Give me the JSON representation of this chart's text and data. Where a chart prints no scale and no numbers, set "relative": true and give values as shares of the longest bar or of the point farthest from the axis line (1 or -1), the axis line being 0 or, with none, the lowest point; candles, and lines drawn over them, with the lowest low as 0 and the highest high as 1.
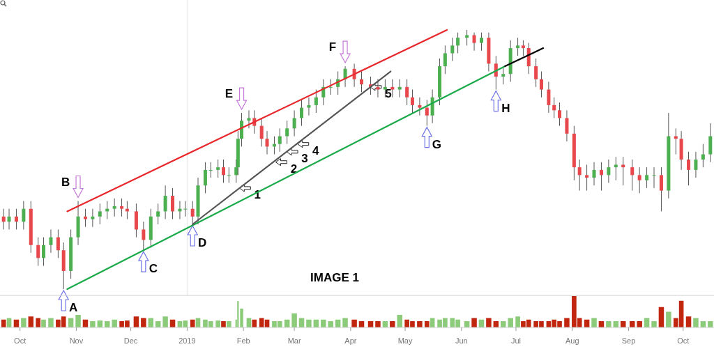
{
  "chart_data": [
    {
      "type": "candlestick",
      "relative": true,
      "tick_labels": false,
      "xlim": [
        "2018-09-20",
        "2019-10-18"
      ],
      "x": [
        "2018-09-22",
        "2018-09-25",
        "2018-09-29",
        "2018-10-03",
        "2018-10-07",
        "2018-10-11",
        "2018-10-14",
        "2018-10-18",
        "2018-10-22",
        "2018-10-25",
        "2018-10-29",
        "2018-11-02",
        "2018-11-06",
        "2018-11-10",
        "2018-11-14",
        "2018-11-18",
        "2018-11-22",
        "2018-11-26",
        "2018-11-29",
        "2018-12-04",
        "2018-12-08",
        "2018-12-12",
        "2018-12-16",
        "2018-12-20",
        "2018-12-24",
        "2018-12-28",
        "2018-12-31",
        "2019-01-04",
        "2019-01-07",
        "2019-01-11",
        "2019-01-14",
        "2019-01-18",
        "2019-01-21",
        "2019-01-24",
        "2019-01-28",
        "2019-01-29",
        "2019-01-31",
        "2019-02-04",
        "2019-02-07",
        "2019-02-11",
        "2019-02-14",
        "2019-02-18",
        "2019-02-21",
        "2019-02-25",
        "2019-03-01",
        "2019-03-05",
        "2019-03-09",
        "2019-03-13",
        "2019-03-17",
        "2019-03-21",
        "2019-03-25",
        "2019-03-29",
        "2019-04-03",
        "2019-04-07",
        "2019-04-12",
        "2019-04-16",
        "2019-04-20",
        "2019-04-24",
        "2019-04-28",
        "2019-05-02",
        "2019-05-05",
        "2019-05-09",
        "2019-05-13",
        "2019-05-16",
        "2019-05-20",
        "2019-05-23",
        "2019-05-27",
        "2019-05-30",
        "2019-06-04",
        "2019-06-08",
        "2019-06-12",
        "2019-06-16",
        "2019-06-20",
        "2019-06-24",
        "2019-06-28",
        "2019-07-02",
        "2019-07-05",
        "2019-07-08",
        "2019-07-12",
        "2019-07-15",
        "2019-07-19",
        "2019-07-22",
        "2019-07-25",
        "2019-07-29",
        "2019-08-02",
        "2019-08-05",
        "2019-08-09",
        "2019-08-13",
        "2019-08-17",
        "2019-08-21",
        "2019-08-25",
        "2019-08-29",
        "2019-09-03",
        "2019-09-07",
        "2019-09-11",
        "2019-09-15",
        "2019-09-19",
        "2019-09-23",
        "2019-09-27",
        "2019-09-30",
        "2019-10-04",
        "2019-10-08",
        "2019-10-12",
        "2019-10-16"
      ],
      "ohlc": [
        [
          0.28,
          0.31,
          0.23,
          0.26
        ],
        [
          0.26,
          0.31,
          0.23,
          0.28
        ],
        [
          0.28,
          0.31,
          0.23,
          0.26
        ],
        [
          0.26,
          0.34,
          0.23,
          0.31
        ],
        [
          0.31,
          0.34,
          0.14,
          0.17
        ],
        [
          0.17,
          0.2,
          0.09,
          0.12
        ],
        [
          0.12,
          0.2,
          0.09,
          0.17
        ],
        [
          0.17,
          0.23,
          0.14,
          0.2
        ],
        [
          0.2,
          0.23,
          0.12,
          0.15
        ],
        [
          0.15,
          0.18,
          0,
          0.07
        ],
        [
          0.07,
          0.23,
          0.04,
          0.2
        ],
        [
          0.2,
          0.34,
          0.17,
          0.28
        ],
        [
          0.28,
          0.31,
          0.24,
          0.27
        ],
        [
          0.27,
          0.31,
          0.24,
          0.28
        ],
        [
          0.28,
          0.33,
          0.25,
          0.3
        ],
        [
          0.3,
          0.34,
          0.27,
          0.31
        ],
        [
          0.31,
          0.35,
          0.28,
          0.32
        ],
        [
          0.32,
          0.35,
          0.28,
          0.31
        ],
        [
          0.31,
          0.34,
          0.27,
          0.3
        ],
        [
          0.3,
          0.33,
          0.2,
          0.23
        ],
        [
          0.23,
          0.26,
          0.15,
          0.19
        ],
        [
          0.19,
          0.31,
          0.16,
          0.28
        ],
        [
          0.28,
          0.33,
          0.25,
          0.3
        ],
        [
          0.3,
          0.4,
          0.27,
          0.36
        ],
        [
          0.36,
          0.39,
          0.27,
          0.3
        ],
        [
          0.3,
          0.34,
          0.27,
          0.31
        ],
        [
          0.31,
          0.34,
          0.28,
          0.31
        ],
        [
          0.31,
          0.34,
          0.25,
          0.28
        ],
        [
          0.28,
          0.43,
          0.25,
          0.4
        ],
        [
          0.4,
          0.49,
          0.37,
          0.46
        ],
        [
          0.46,
          0.49,
          0.43,
          0.46
        ],
        [
          0.46,
          0.5,
          0.43,
          0.47
        ],
        [
          0.47,
          0.5,
          0.41,
          0.44
        ],
        [
          0.44,
          0.47,
          0.41,
          0.44
        ],
        [
          0.44,
          0.5,
          0.41,
          0.47
        ],
        [
          0.47,
          0.61,
          0.44,
          0.58
        ],
        [
          0.58,
          0.68,
          0.55,
          0.65
        ],
        [
          0.65,
          0.69,
          0.62,
          0.66
        ],
        [
          0.66,
          0.69,
          0.6,
          0.63
        ],
        [
          0.63,
          0.66,
          0.55,
          0.58
        ],
        [
          0.58,
          0.61,
          0.52,
          0.55
        ],
        [
          0.55,
          0.59,
          0.52,
          0.56
        ],
        [
          0.56,
          0.62,
          0.53,
          0.59
        ],
        [
          0.59,
          0.65,
          0.56,
          0.62
        ],
        [
          0.62,
          0.69,
          0.59,
          0.66
        ],
        [
          0.66,
          0.73,
          0.63,
          0.7
        ],
        [
          0.7,
          0.74,
          0.67,
          0.71
        ],
        [
          0.71,
          0.77,
          0.68,
          0.74
        ],
        [
          0.74,
          0.81,
          0.71,
          0.78
        ],
        [
          0.78,
          0.81,
          0.75,
          0.78
        ],
        [
          0.78,
          0.84,
          0.75,
          0.81
        ],
        [
          0.81,
          0.86,
          0.78,
          0.85
        ],
        [
          0.85,
          0.87,
          0.78,
          0.81
        ],
        [
          0.81,
          0.84,
          0.76,
          0.79
        ],
        [
          0.79,
          0.82,
          0.75,
          0.78
        ],
        [
          0.78,
          0.81,
          0.74,
          0.77
        ],
        [
          0.77,
          0.81,
          0.74,
          0.78
        ],
        [
          0.78,
          0.81,
          0.74,
          0.77
        ],
        [
          0.77,
          0.81,
          0.74,
          0.78
        ],
        [
          0.78,
          0.81,
          0.71,
          0.74
        ],
        [
          0.74,
          0.77,
          0.68,
          0.71
        ],
        [
          0.71,
          0.74,
          0.67,
          0.7
        ],
        [
          0.7,
          0.73,
          0.63,
          0.67
        ],
        [
          0.67,
          0.77,
          0.64,
          0.74
        ],
        [
          0.74,
          0.89,
          0.71,
          0.86
        ],
        [
          0.86,
          0.94,
          0.83,
          0.91
        ],
        [
          0.91,
          0.97,
          0.88,
          0.94
        ],
        [
          0.94,
          0.99,
          0.91,
          0.97
        ],
        [
          0.97,
          1,
          0.94,
          0.98
        ],
        [
          0.98,
          0.99,
          0.92,
          0.95
        ],
        [
          0.95,
          0.99,
          0.92,
          0.97
        ],
        [
          0.97,
          0.99,
          0.84,
          0.87
        ],
        [
          0.87,
          0.9,
          0.77,
          0.82
        ],
        [
          0.82,
          0.86,
          0.79,
          0.83
        ],
        [
          0.83,
          0.96,
          0.8,
          0.93
        ],
        [
          0.93,
          0.97,
          0.9,
          0.94
        ],
        [
          0.94,
          0.96,
          0.9,
          0.93
        ],
        [
          0.93,
          0.95,
          0.83,
          0.86
        ],
        [
          0.86,
          0.89,
          0.78,
          0.81
        ],
        [
          0.81,
          0.84,
          0.74,
          0.77
        ],
        [
          0.77,
          0.8,
          0.68,
          0.71
        ],
        [
          0.71,
          0.74,
          0.66,
          0.69
        ],
        [
          0.69,
          0.72,
          0.63,
          0.66
        ],
        [
          0.66,
          0.69,
          0.57,
          0.6
        ],
        [
          0.6,
          0.63,
          0.42,
          0.47
        ],
        [
          0.47,
          0.5,
          0.38,
          0.44
        ],
        [
          0.44,
          0.48,
          0.38,
          0.43
        ],
        [
          0.43,
          0.49,
          0.4,
          0.46
        ],
        [
          0.46,
          0.49,
          0.38,
          0.44
        ],
        [
          0.44,
          0.5,
          0.41,
          0.47
        ],
        [
          0.47,
          0.51,
          0.42,
          0.48
        ],
        [
          0.48,
          0.51,
          0.4,
          0.47
        ],
        [
          0.47,
          0.5,
          0.38,
          0.44
        ],
        [
          0.44,
          0.47,
          0.37,
          0.42
        ],
        [
          0.42,
          0.47,
          0.39,
          0.44
        ],
        [
          0.44,
          0.47,
          0.39,
          0.44
        ],
        [
          0.44,
          0.47,
          0.3,
          0.38
        ],
        [
          0.38,
          0.68,
          0.35,
          0.59
        ],
        [
          0.59,
          0.62,
          0.52,
          0.58
        ],
        [
          0.58,
          0.61,
          0.46,
          0.5
        ],
        [
          0.5,
          0.53,
          0.4,
          0.46
        ],
        [
          0.46,
          0.53,
          0.43,
          0.5
        ],
        [
          0.5,
          0.56,
          0.47,
          0.52
        ],
        [
          0.52,
          0.64,
          0.49,
          0.59
        ]
      ],
      "series": [
        {
          "type": "line",
          "color": "#e8262b",
          "x": [
            "2018-10-27",
            "2019-05-24"
          ],
          "values": [
            0.3,
            1
          ]
        },
        {
          "type": "line",
          "color": "#1aaa4a",
          "x": [
            "2018-10-27",
            "2019-06-25"
          ],
          "values": [
            0,
            0.86
          ]
        },
        {
          "type": "line",
          "color": "#555555",
          "x": [
            "2019-01-04",
            "2019-04-23"
          ],
          "values": [
            0.25,
            0.84
          ]
        },
        {
          "type": "line",
          "color": "#000000",
          "x": [
            "2019-06-25",
            "2019-07-16"
          ],
          "values": [
            0.86,
            0.93
          ]
        }
      ],
      "annotations": [
        {
          "text": "A",
          "x": "2018-10-25",
          "y": 0
        },
        {
          "text": "B",
          "x": "2018-11-02",
          "y": 0.34
        },
        {
          "text": "C",
          "x": "2018-12-08",
          "y": 0.15
        },
        {
          "text": "D",
          "x": "2019-01-04",
          "y": 0.25
        },
        {
          "text": "E",
          "x": "2019-01-31",
          "y": 0.68
        },
        {
          "text": "F",
          "x": "2019-03-29",
          "y": 0.86
        },
        {
          "text": "G",
          "x": "2019-05-13",
          "y": 0.63
        },
        {
          "text": "H",
          "x": "2019-06-20",
          "y": 0.77
        },
        {
          "text": "1",
          "x": "2019-01-29",
          "y": 0.39
        },
        {
          "text": "2",
          "x": "2019-02-18",
          "y": 0.49
        },
        {
          "text": "3",
          "x": "2019-02-24",
          "y": 0.53
        },
        {
          "text": "4",
          "x": "2019-03-02",
          "y": 0.56
        },
        {
          "text": "5",
          "x": "2019-04-11",
          "y": 0.78
        },
        "IMAGE 1"
      ]
    },
    {
      "type": "bar",
      "relative": true,
      "tick_labels": "x",
      "xlim": [
        "2018-09-20",
        "2019-10-18"
      ],
      "xticks": [
        {
          "value": "2018-10-01",
          "label": "Oct"
        },
        {
          "value": "2018-11-01",
          "label": "Nov"
        },
        {
          "value": "2018-12-01",
          "label": "Dec"
        },
        {
          "value": "2019-01-01",
          "label": "2019"
        },
        {
          "value": "2019-02-01",
          "label": "Feb"
        },
        {
          "value": "2019-03-01",
          "label": "Mar"
        },
        {
          "value": "2019-04-01",
          "label": "Apr"
        },
        {
          "value": "2019-05-01",
          "label": "May"
        },
        {
          "value": "2019-06-01",
          "label": "Jun"
        },
        {
          "value": "2019-07-01",
          "label": "Jul"
        },
        {
          "value": "2019-08-01",
          "label": "Aug"
        },
        {
          "value": "2019-09-01",
          "label": "Sep"
        },
        {
          "value": "2019-10-01",
          "label": "Oct"
        }
      ],
      "x": [
        "2018-09-22",
        "2018-09-25",
        "2018-09-29",
        "2018-10-03",
        "2018-10-07",
        "2018-10-11",
        "2018-10-14",
        "2018-10-18",
        "2018-10-22",
        "2018-10-25",
        "2018-10-29",
        "2018-11-02",
        "2018-11-06",
        "2018-11-10",
        "2018-11-14",
        "2018-11-18",
        "2018-11-22",
        "2018-11-26",
        "2018-11-29",
        "2018-12-04",
        "2018-12-08",
        "2018-12-12",
        "2018-12-16",
        "2018-12-20",
        "2018-12-24",
        "2018-12-28",
        "2018-12-31",
        "2019-01-04",
        "2019-01-07",
        "2019-01-11",
        "2019-01-14",
        "2019-01-18",
        "2019-01-21",
        "2019-01-24",
        "2019-01-28",
        "2019-01-29",
        "2019-01-31",
        "2019-02-04",
        "2019-02-07",
        "2019-02-11",
        "2019-02-14",
        "2019-02-18",
        "2019-02-21",
        "2019-02-25",
        "2019-03-01",
        "2019-03-05",
        "2019-03-09",
        "2019-03-13",
        "2019-03-17",
        "2019-03-21",
        "2019-03-25",
        "2019-03-29",
        "2019-04-03",
        "2019-04-07",
        "2019-04-12",
        "2019-04-16",
        "2019-04-20",
        "2019-04-24",
        "2019-04-28",
        "2019-05-02",
        "2019-05-05",
        "2019-05-09",
        "2019-05-13",
        "2019-05-16",
        "2019-05-20",
        "2019-05-23",
        "2019-05-27",
        "2019-05-30",
        "2019-06-04",
        "2019-06-08",
        "2019-06-12",
        "2019-06-16",
        "2019-06-20",
        "2019-06-24",
        "2019-06-28",
        "2019-07-02",
        "2019-07-05",
        "2019-07-08",
        "2019-07-12",
        "2019-07-15",
        "2019-07-19",
        "2019-07-22",
        "2019-07-25",
        "2019-07-29",
        "2019-08-02",
        "2019-08-05",
        "2019-08-09",
        "2019-08-13",
        "2019-08-17",
        "2019-08-21",
        "2019-08-25",
        "2019-08-29",
        "2019-09-03",
        "2019-09-07",
        "2019-09-11",
        "2019-09-15",
        "2019-09-19",
        "2019-09-23",
        "2019-09-27",
        "2019-09-30",
        "2019-10-04",
        "2019-10-08",
        "2019-10-12",
        "2019-10-16"
      ],
      "values": [
        0.25,
        0.3,
        0.25,
        0.3,
        0.35,
        0.3,
        0.25,
        0.3,
        0.25,
        0.35,
        0.3,
        0.4,
        0.25,
        0.2,
        0.22,
        0.2,
        0.25,
        0.2,
        0.22,
        0.35,
        0.3,
        0.3,
        0.2,
        0.35,
        0.25,
        0.2,
        0.22,
        0.25,
        0.3,
        0.25,
        0.2,
        0.22,
        0.2,
        0.2,
        0.25,
        0.84,
        0.6,
        0.3,
        0.25,
        0.3,
        0.25,
        0.2,
        0.2,
        0.25,
        0.45,
        0.3,
        0.25,
        0.25,
        0.25,
        0.2,
        0.25,
        0.3,
        0.25,
        0.2,
        0.2,
        0.2,
        0.2,
        0.2,
        0.4,
        0.25,
        0.2,
        0.2,
        0.2,
        0.3,
        0.25,
        0.3,
        0.3,
        0.25,
        0.2,
        0.3,
        0.25,
        0.3,
        0.2,
        0.2,
        0.3,
        0.35,
        0.2,
        0.25,
        0.2,
        0.2,
        0.2,
        0.25,
        0.2,
        0.3,
        1,
        0.3,
        0.25,
        0.3,
        0.2,
        0.2,
        0.2,
        0.2,
        0.2,
        0.2,
        0.3,
        0.2,
        0.65,
        0.5,
        0.3,
        0.85,
        0.35,
        0.3,
        0.2,
        0.2
      ],
      "colors": [
        "#c1260f",
        "#8ccb7a",
        "#c1260f",
        "#8ccb7a",
        "#c1260f",
        "#c1260f",
        "#8ccb7a",
        "#8ccb7a",
        "#c1260f",
        "#c1260f",
        "#8ccb7a",
        "#8ccb7a",
        "#c1260f",
        "#8ccb7a",
        "#8ccb7a",
        "#8ccb7a",
        "#8ccb7a",
        "#c1260f",
        "#c1260f",
        "#c1260f",
        "#c1260f",
        "#8ccb7a",
        "#8ccb7a",
        "#8ccb7a",
        "#c1260f",
        "#8ccb7a",
        "#8ccb7a",
        "#c1260f",
        "#8ccb7a",
        "#8ccb7a",
        "#8ccb7a",
        "#8ccb7a",
        "#c1260f",
        "#8ccb7a",
        "#8ccb7a",
        "#8ccb7a",
        "#8ccb7a",
        "#8ccb7a",
        "#c1260f",
        "#c1260f",
        "#c1260f",
        "#8ccb7a",
        "#8ccb7a",
        "#8ccb7a",
        "#8ccb7a",
        "#8ccb7a",
        "#8ccb7a",
        "#8ccb7a",
        "#8ccb7a",
        "#8ccb7a",
        "#8ccb7a",
        "#8ccb7a",
        "#c1260f",
        "#c1260f",
        "#c1260f",
        "#c1260f",
        "#8ccb7a",
        "#c1260f",
        "#8ccb7a",
        "#c1260f",
        "#c1260f",
        "#c1260f",
        "#c1260f",
        "#8ccb7a",
        "#8ccb7a",
        "#8ccb7a",
        "#8ccb7a",
        "#8ccb7a",
        "#8ccb7a",
        "#c1260f",
        "#8ccb7a",
        "#c1260f",
        "#c1260f",
        "#8ccb7a",
        "#8ccb7a",
        "#8ccb7a",
        "#c1260f",
        "#c1260f",
        "#c1260f",
        "#c1260f",
        "#c1260f",
        "#c1260f",
        "#c1260f",
        "#c1260f",
        "#c1260f",
        "#c1260f",
        "#c1260f",
        "#8ccb7a",
        "#c1260f",
        "#8ccb7a",
        "#8ccb7a",
        "#c1260f",
        "#c1260f",
        "#c1260f",
        "#8ccb7a",
        "#8ccb7a",
        "#c1260f",
        "#8ccb7a",
        "#c1260f",
        "#c1260f",
        "#c1260f",
        "#8ccb7a",
        "#8ccb7a",
        "#8ccb7a"
      ]
    }
  ]
}
